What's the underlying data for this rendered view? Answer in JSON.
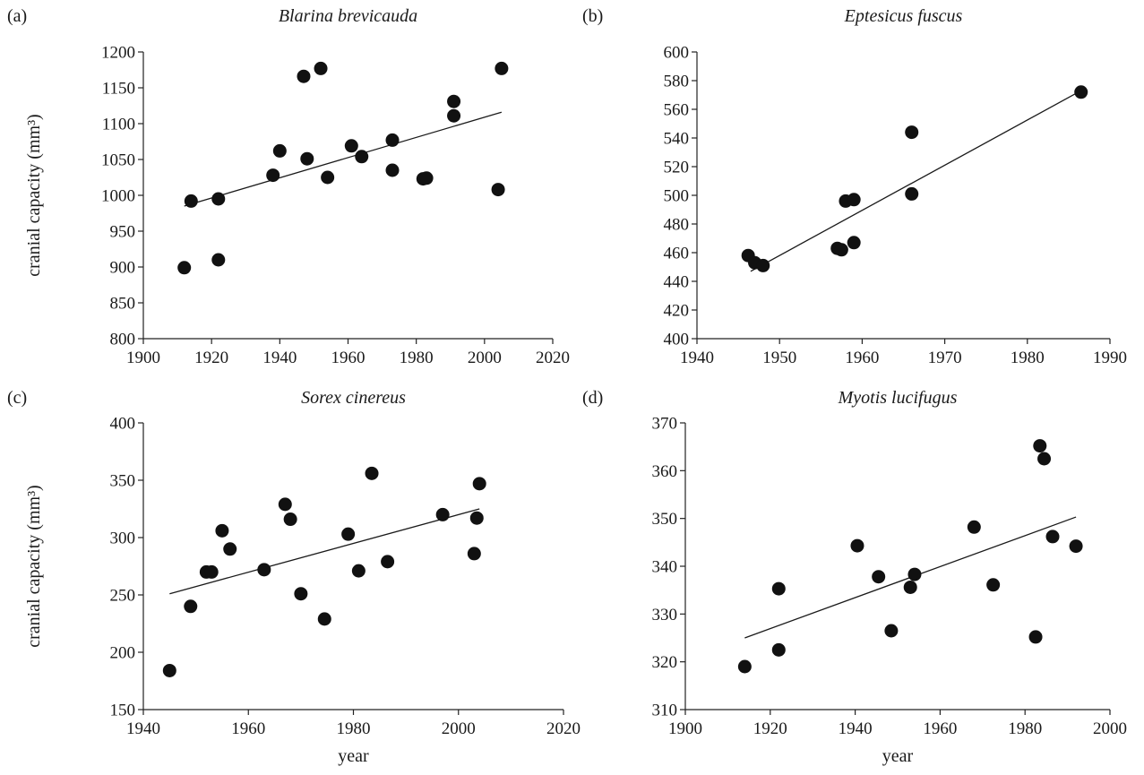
{
  "chart_data": [
    {
      "type": "scatter",
      "panel_label": "(a)",
      "title": "Blarina brevicauda",
      "xlabel": "",
      "ylabel": "cranial capacity (mm³)",
      "xlim": [
        1900,
        2020
      ],
      "ylim": [
        800,
        1200
      ],
      "xticks": [
        1900,
        1920,
        1940,
        1960,
        1980,
        2000,
        2020
      ],
      "yticks": [
        800,
        850,
        900,
        950,
        1000,
        1050,
        1100,
        1150,
        1200
      ],
      "points": [
        {
          "x": 1912,
          "y": 899
        },
        {
          "x": 1914,
          "y": 992
        },
        {
          "x": 1922,
          "y": 995
        },
        {
          "x": 1922,
          "y": 910
        },
        {
          "x": 1938,
          "y": 1028
        },
        {
          "x": 1940,
          "y": 1062
        },
        {
          "x": 1947,
          "y": 1166
        },
        {
          "x": 1948,
          "y": 1051
        },
        {
          "x": 1952,
          "y": 1177
        },
        {
          "x": 1954,
          "y": 1025
        },
        {
          "x": 1961,
          "y": 1069
        },
        {
          "x": 1964,
          "y": 1054
        },
        {
          "x": 1973,
          "y": 1077
        },
        {
          "x": 1973,
          "y": 1035
        },
        {
          "x": 1982,
          "y": 1023
        },
        {
          "x": 1983,
          "y": 1024
        },
        {
          "x": 1991,
          "y": 1131
        },
        {
          "x": 1991,
          "y": 1111
        },
        {
          "x": 2004,
          "y": 1008
        },
        {
          "x": 2005,
          "y": 1177
        }
      ],
      "trendline": [
        {
          "x": 1912,
          "y": 985
        },
        {
          "x": 2005,
          "y": 1116
        }
      ],
      "grid": false,
      "legend": "none"
    },
    {
      "type": "scatter",
      "panel_label": "(b)",
      "title": "Eptesicus fuscus",
      "xlabel": "",
      "ylabel": "",
      "xlim": [
        1940,
        1990
      ],
      "ylim": [
        400,
        600
      ],
      "xticks": [
        1940,
        1950,
        1960,
        1970,
        1980,
        1990
      ],
      "yticks": [
        400,
        420,
        440,
        460,
        480,
        500,
        520,
        540,
        560,
        580,
        600
      ],
      "points": [
        {
          "x": 1946.2,
          "y": 458
        },
        {
          "x": 1947,
          "y": 453
        },
        {
          "x": 1948,
          "y": 451
        },
        {
          "x": 1957,
          "y": 463
        },
        {
          "x": 1957.5,
          "y": 462
        },
        {
          "x": 1958,
          "y": 496
        },
        {
          "x": 1959,
          "y": 497
        },
        {
          "x": 1959,
          "y": 467
        },
        {
          "x": 1966,
          "y": 544
        },
        {
          "x": 1966,
          "y": 501
        },
        {
          "x": 1986.5,
          "y": 572
        }
      ],
      "trendline": [
        {
          "x": 1946.5,
          "y": 447
        },
        {
          "x": 1986.5,
          "y": 573
        }
      ],
      "grid": false,
      "legend": "none"
    },
    {
      "type": "scatter",
      "panel_label": "(c)",
      "title": "Sorex cinereus",
      "xlabel": "year",
      "ylabel": "cranial capacity (mm³)",
      "xlim": [
        1940,
        2020
      ],
      "ylim": [
        150,
        400
      ],
      "xticks": [
        1940,
        1960,
        1980,
        2000,
        2020
      ],
      "yticks": [
        150,
        200,
        250,
        300,
        350,
        400
      ],
      "points": [
        {
          "x": 1945,
          "y": 184
        },
        {
          "x": 1949,
          "y": 240
        },
        {
          "x": 1952,
          "y": 270
        },
        {
          "x": 1953,
          "y": 270
        },
        {
          "x": 1955,
          "y": 306
        },
        {
          "x": 1956.5,
          "y": 290
        },
        {
          "x": 1963,
          "y": 272
        },
        {
          "x": 1967,
          "y": 329
        },
        {
          "x": 1968,
          "y": 316
        },
        {
          "x": 1970,
          "y": 251
        },
        {
          "x": 1974.5,
          "y": 229
        },
        {
          "x": 1979,
          "y": 303
        },
        {
          "x": 1981,
          "y": 271
        },
        {
          "x": 1983.5,
          "y": 356
        },
        {
          "x": 1986.5,
          "y": 279
        },
        {
          "x": 1997,
          "y": 320
        },
        {
          "x": 2003,
          "y": 286
        },
        {
          "x": 2003.5,
          "y": 317
        },
        {
          "x": 2004,
          "y": 347
        }
      ],
      "trendline": [
        {
          "x": 1945,
          "y": 251
        },
        {
          "x": 2004,
          "y": 325
        }
      ],
      "grid": false,
      "legend": "none"
    },
    {
      "type": "scatter",
      "panel_label": "(d)",
      "title": "Myotis lucifugus",
      "xlabel": "year",
      "ylabel": "",
      "xlim": [
        1900,
        2000
      ],
      "ylim": [
        310,
        370
      ],
      "xticks": [
        1900,
        1920,
        1940,
        1960,
        1980,
        2000
      ],
      "yticks": [
        310,
        320,
        330,
        340,
        350,
        360,
        370
      ],
      "points": [
        {
          "x": 1914,
          "y": 319
        },
        {
          "x": 1922,
          "y": 335.3
        },
        {
          "x": 1922,
          "y": 322.5
        },
        {
          "x": 1940.5,
          "y": 344.3
        },
        {
          "x": 1945.5,
          "y": 337.8
        },
        {
          "x": 1948.5,
          "y": 326.5
        },
        {
          "x": 1953,
          "y": 335.6
        },
        {
          "x": 1954,
          "y": 338.3
        },
        {
          "x": 1968,
          "y": 348.2
        },
        {
          "x": 1972.5,
          "y": 336.1
        },
        {
          "x": 1982.5,
          "y": 325.2
        },
        {
          "x": 1983.5,
          "y": 365.2
        },
        {
          "x": 1984.5,
          "y": 362.5
        },
        {
          "x": 1986.5,
          "y": 346.2
        },
        {
          "x": 1992,
          "y": 344.2
        }
      ],
      "trendline": [
        {
          "x": 1914,
          "y": 325
        },
        {
          "x": 1992,
          "y": 350.3
        }
      ],
      "grid": false,
      "legend": "none"
    }
  ]
}
